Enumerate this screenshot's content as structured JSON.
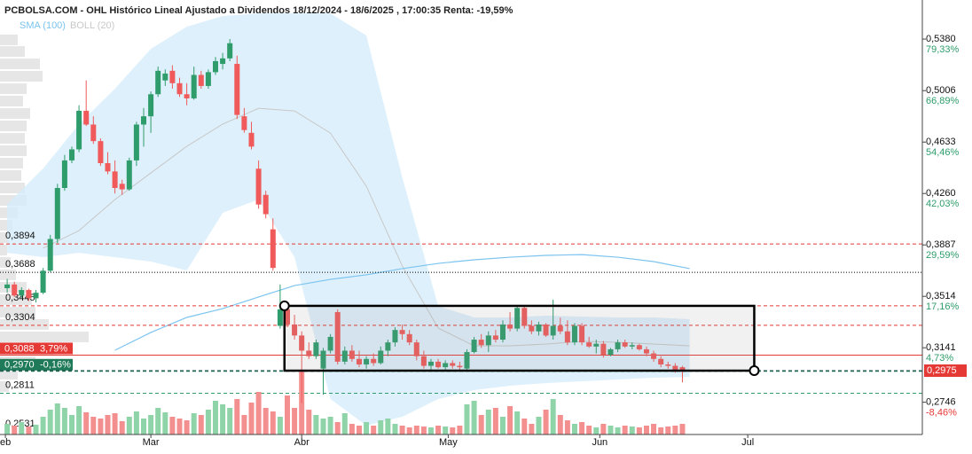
{
  "chart_data": {
    "type": "candlestick",
    "title": "PCBOLSA.COM - OHL Histórico Lineal Ajustado a Dividendos 18/12/2024 - 18/6/2025 , 17:00:35 Renta: -19,59%",
    "legend": [
      {
        "name": "SMA (100)",
        "color": "#7cc4ef"
      },
      {
        "name": "BOLL (20)",
        "color": "#c8c8c8"
      }
    ],
    "xlim": [
      -1,
      127.4
    ],
    "ylim": [
      0.2512,
      0.5612
    ],
    "xticks": [
      {
        "value": -0.25,
        "label": "eb"
      },
      {
        "value": 20,
        "label": "Mar"
      },
      {
        "value": 41,
        "label": "Abr"
      },
      {
        "value": 61.4,
        "label": "May"
      },
      {
        "value": 82.5,
        "label": "Jun"
      },
      {
        "value": 103.1,
        "label": "Jul"
      }
    ],
    "yticks": [
      {
        "value": 0.538,
        "label": "0,5380"
      },
      {
        "value": 0.5006,
        "label": "0,5006"
      },
      {
        "value": 0.4633,
        "label": "0,4633"
      },
      {
        "value": 0.426,
        "label": "0,4260"
      },
      {
        "value": 0.3887,
        "label": "0,3887"
      },
      {
        "value": 0.3514,
        "label": "0,3514"
      },
      {
        "value": 0.3141,
        "label": "0,3141"
      },
      {
        "value": 0.2746,
        "label": "0,2746"
      }
    ],
    "ytick_percents": [
      "79,33%",
      "66,89%",
      "54,46%",
      "42,03%",
      "29,59%",
      "17,16%",
      "4,73%",
      "-8,46%"
    ],
    "up_color": "#2e9d6b",
    "down_color": "#f05a5a",
    "ohlc": [
      [
        0.3573,
        0.364,
        0.3541,
        0.36
      ],
      [
        0.36,
        0.362,
        0.3509,
        0.352
      ],
      [
        0.352,
        0.358,
        0.35,
        0.356
      ],
      [
        0.356,
        0.357,
        0.348,
        0.35
      ],
      [
        0.35,
        0.356,
        0.347,
        0.354
      ],
      [
        0.354,
        0.372,
        0.353,
        0.37
      ],
      [
        0.37,
        0.396,
        0.369,
        0.393
      ],
      [
        0.393,
        0.433,
        0.39,
        0.43
      ],
      [
        0.43,
        0.454,
        0.428,
        0.45
      ],
      [
        0.45,
        0.46,
        0.448,
        0.458
      ],
      [
        0.458,
        0.49,
        0.456,
        0.486
      ],
      [
        0.486,
        0.508,
        0.475,
        0.476
      ],
      [
        0.476,
        0.482,
        0.462,
        0.464
      ],
      [
        0.464,
        0.466,
        0.446,
        0.448
      ],
      [
        0.448,
        0.456,
        0.44,
        0.442
      ],
      [
        0.442,
        0.45,
        0.426,
        0.43
      ],
      [
        0.433,
        0.436,
        0.425,
        0.429
      ],
      [
        0.429,
        0.452,
        0.428,
        0.45
      ],
      [
        0.45,
        0.478,
        0.446,
        0.476
      ],
      [
        0.476,
        0.488,
        0.46,
        0.482
      ],
      [
        0.482,
        0.5,
        0.47,
        0.498
      ],
      [
        0.498,
        0.518,
        0.496,
        0.515
      ],
      [
        0.508,
        0.516,
        0.504,
        0.513
      ],
      [
        0.515,
        0.519,
        0.502,
        0.506
      ],
      [
        0.506,
        0.51,
        0.496,
        0.498
      ],
      [
        0.498,
        0.506,
        0.49,
        0.495
      ],
      [
        0.495,
        0.518,
        0.494,
        0.512
      ],
      [
        0.512,
        0.515,
        0.502,
        0.504
      ],
      [
        0.504,
        0.516,
        0.502,
        0.514
      ],
      [
        0.514,
        0.525,
        0.512,
        0.522
      ],
      [
        0.52,
        0.528,
        0.516,
        0.524
      ],
      [
        0.524,
        0.538,
        0.522,
        0.535
      ],
      [
        0.52,
        0.526,
        0.48,
        0.483
      ],
      [
        0.482,
        0.488,
        0.47,
        0.472
      ],
      [
        0.47,
        0.478,
        0.458,
        0.46
      ],
      [
        0.444,
        0.45,
        0.415,
        0.418
      ],
      [
        0.425,
        0.428,
        0.408,
        0.411
      ],
      [
        0.4,
        0.408,
        0.37,
        0.372
      ],
      [
        0.33,
        0.36,
        0.328,
        0.342
      ],
      [
        0.342,
        0.344,
        0.329,
        0.331
      ],
      [
        0.331,
        0.338,
        0.32,
        0.323
      ],
      [
        0.323,
        0.326,
        0.274,
        0.312
      ],
      [
        0.312,
        0.318,
        0.306,
        0.308
      ],
      [
        0.308,
        0.32,
        0.306,
        0.318
      ],
      [
        0.299,
        0.314,
        0.28,
        0.312
      ],
      [
        0.312,
        0.324,
        0.31,
        0.322
      ],
      [
        0.34,
        0.342,
        0.302,
        0.304
      ],
      [
        0.304,
        0.315,
        0.302,
        0.312
      ],
      [
        0.312,
        0.316,
        0.304,
        0.306
      ],
      [
        0.306,
        0.312,
        0.3,
        0.302
      ],
      [
        0.302,
        0.308,
        0.299,
        0.306
      ],
      [
        0.306,
        0.31,
        0.301,
        0.303
      ],
      [
        0.303,
        0.315,
        0.302,
        0.312
      ],
      [
        0.312,
        0.32,
        0.308,
        0.318
      ],
      [
        0.318,
        0.329,
        0.315,
        0.327
      ],
      [
        0.327,
        0.331,
        0.32,
        0.324
      ],
      [
        0.324,
        0.327,
        0.316,
        0.318
      ],
      [
        0.318,
        0.32,
        0.305,
        0.308
      ],
      [
        0.308,
        0.312,
        0.299,
        0.301
      ],
      [
        0.301,
        0.306,
        0.298,
        0.304
      ],
      [
        0.304,
        0.306,
        0.299,
        0.3
      ],
      [
        0.3,
        0.305,
        0.298,
        0.303
      ],
      [
        0.303,
        0.305,
        0.299,
        0.301
      ],
      [
        0.301,
        0.304,
        0.297,
        0.3
      ],
      [
        0.299,
        0.313,
        0.297,
        0.311
      ],
      [
        0.311,
        0.322,
        0.31,
        0.32
      ],
      [
        0.32,
        0.324,
        0.314,
        0.316
      ],
      [
        0.316,
        0.326,
        0.311,
        0.323
      ],
      [
        0.323,
        0.327,
        0.318,
        0.32
      ],
      [
        0.32,
        0.334,
        0.318,
        0.331
      ],
      [
        0.331,
        0.34,
        0.326,
        0.328
      ],
      [
        0.328,
        0.344,
        0.326,
        0.343
      ],
      [
        0.343,
        0.345,
        0.328,
        0.33
      ],
      [
        0.33,
        0.334,
        0.324,
        0.326
      ],
      [
        0.326,
        0.333,
        0.323,
        0.331
      ],
      [
        0.331,
        0.332,
        0.322,
        0.323
      ],
      [
        0.323,
        0.349,
        0.32,
        0.33
      ],
      [
        0.33,
        0.336,
        0.324,
        0.326
      ],
      [
        0.326,
        0.334,
        0.316,
        0.318
      ],
      [
        0.318,
        0.332,
        0.316,
        0.33
      ],
      [
        0.33,
        0.332,
        0.316,
        0.318
      ],
      [
        0.318,
        0.322,
        0.314,
        0.315
      ],
      [
        0.315,
        0.32,
        0.31,
        0.317
      ],
      [
        0.317,
        0.319,
        0.307,
        0.309
      ],
      [
        0.309,
        0.314,
        0.308,
        0.313
      ],
      [
        0.313,
        0.32,
        0.311,
        0.318
      ],
      [
        0.318,
        0.32,
        0.314,
        0.315
      ],
      [
        0.315,
        0.318,
        0.313,
        0.316
      ],
      [
        0.316,
        0.317,
        0.312,
        0.313
      ],
      [
        0.313,
        0.315,
        0.308,
        0.31
      ],
      [
        0.31,
        0.312,
        0.304,
        0.306
      ],
      [
        0.306,
        0.308,
        0.3,
        0.302
      ],
      [
        0.302,
        0.304,
        0.299,
        0.301
      ],
      [
        0.301,
        0.303,
        0.296,
        0.298
      ],
      [
        0.3,
        0.301,
        0.289,
        0.2975
      ]
    ],
    "volumes": [
      12,
      10,
      14,
      9,
      11,
      20,
      28,
      35,
      30,
      22,
      32,
      25,
      20,
      18,
      22,
      24,
      15,
      20,
      26,
      18,
      22,
      30,
      25,
      20,
      18,
      16,
      24,
      22,
      28,
      38,
      34,
      30,
      40,
      22,
      36,
      48,
      30,
      26,
      20,
      44,
      30,
      72,
      28,
      22,
      18,
      20,
      14,
      24,
      12,
      10,
      14,
      10,
      16,
      18,
      12,
      10,
      8,
      10,
      9,
      8,
      10,
      9,
      8,
      10,
      34,
      38,
      22,
      28,
      30,
      20,
      32,
      26,
      18,
      12,
      20,
      28,
      40,
      22,
      16,
      12,
      14,
      10,
      8,
      12,
      10,
      8,
      10,
      9,
      8,
      10,
      12,
      8,
      9,
      10,
      12
    ],
    "bollinger": {
      "x": [
        0,
        5,
        10,
        15,
        20,
        25,
        30,
        35,
        40,
        45,
        50,
        55,
        60,
        65,
        70,
        75,
        80,
        85,
        90,
        95
      ],
      "upper": [
        0.4184,
        0.4441,
        0.4763,
        0.502,
        0.5309,
        0.547,
        0.5547,
        0.5566,
        0.5566,
        0.5566,
        0.5406,
        0.4377,
        0.3444,
        0.3361,
        0.3361,
        0.3374,
        0.3367,
        0.3361,
        0.3361,
        0.3348
      ],
      "lower": [
        0.383,
        0.3798,
        0.383,
        0.3798,
        0.3766,
        0.3702,
        0.412,
        0.4216,
        0.3798,
        0.2769,
        0.2577,
        0.2641,
        0.2769,
        0.2834,
        0.2866,
        0.2885,
        0.2898,
        0.2911,
        0.2924,
        0.293
      ],
      "mid": [
        null,
        0.3863,
        0.3991,
        0.4216,
        0.4409,
        0.4602,
        0.4763,
        0.4878,
        0.4859,
        0.4698,
        0.4313,
        0.3734,
        0.3284,
        0.3155,
        0.3155,
        0.3168,
        0.3187,
        0.3181,
        0.3168,
        0.3155
      ]
    },
    "sma": {
      "x": [
        15,
        20,
        25,
        30,
        35,
        40,
        45,
        50,
        55,
        60,
        65,
        70,
        75,
        80,
        85,
        90,
        95
      ],
      "values": [
        0.3123,
        0.3252,
        0.3361,
        0.3425,
        0.3509,
        0.3592,
        0.3637,
        0.367,
        0.3715,
        0.3753,
        0.3779,
        0.3798,
        0.3811,
        0.3817,
        0.3798,
        0.3766,
        0.3715
      ]
    },
    "volume_profile": {
      "prices": [
        0.5374,
        0.529,
        0.52,
        0.511,
        0.502,
        0.493,
        0.484,
        0.475,
        0.466,
        0.457,
        0.448,
        0.439,
        0.43,
        0.421,
        0.412,
        0.403,
        0.394,
        0.385,
        0.376,
        0.367,
        0.358,
        0.349,
        0.34,
        0.331,
        0.322,
        0.313,
        0.304,
        0.295,
        0.286
      ],
      "values": [
        20,
        28,
        45,
        48,
        30,
        26,
        34,
        30,
        28,
        30,
        26,
        24,
        28,
        30,
        20,
        14,
        10,
        8,
        12,
        18,
        30,
        36,
        40,
        55,
        100,
        60,
        40,
        20,
        10
      ]
    },
    "levels": [
      {
        "value": 0.3894,
        "label": "0,3894",
        "color": "#e53935",
        "style": "dashed"
      },
      {
        "value": 0.3688,
        "label": "0,3688",
        "color": "#000000",
        "style": "dotted"
      },
      {
        "value": 0.3445,
        "label": "0,3445",
        "color": "#e53935",
        "style": "dashed"
      },
      {
        "value": 0.3304,
        "label": "0,3304",
        "color": "#e53935",
        "style": "dashed"
      },
      {
        "value": 0.3088,
        "label": "0,3088",
        "percent": "3,79%",
        "color": "#e53935",
        "style": "solid",
        "boxed": true
      },
      {
        "value": 0.297,
        "label": "0,2970",
        "percent": "-0,16%",
        "color": "#1f7a5a",
        "style": "dashed",
        "boxed": true
      },
      {
        "value": 0.2811,
        "label": "0,2811",
        "color": "#2e9d6b",
        "style": "dashed"
      },
      {
        "value": 0.2531,
        "label": "0,2531",
        "color": "#000000",
        "style": "none"
      }
    ],
    "last_price": {
      "value": 0.2975,
      "label": "0,2975",
      "color": "#e53935"
    },
    "drawing": {
      "x": [
        38.6,
        104
      ],
      "y": [
        0.3445,
        0.2975
      ]
    }
  }
}
